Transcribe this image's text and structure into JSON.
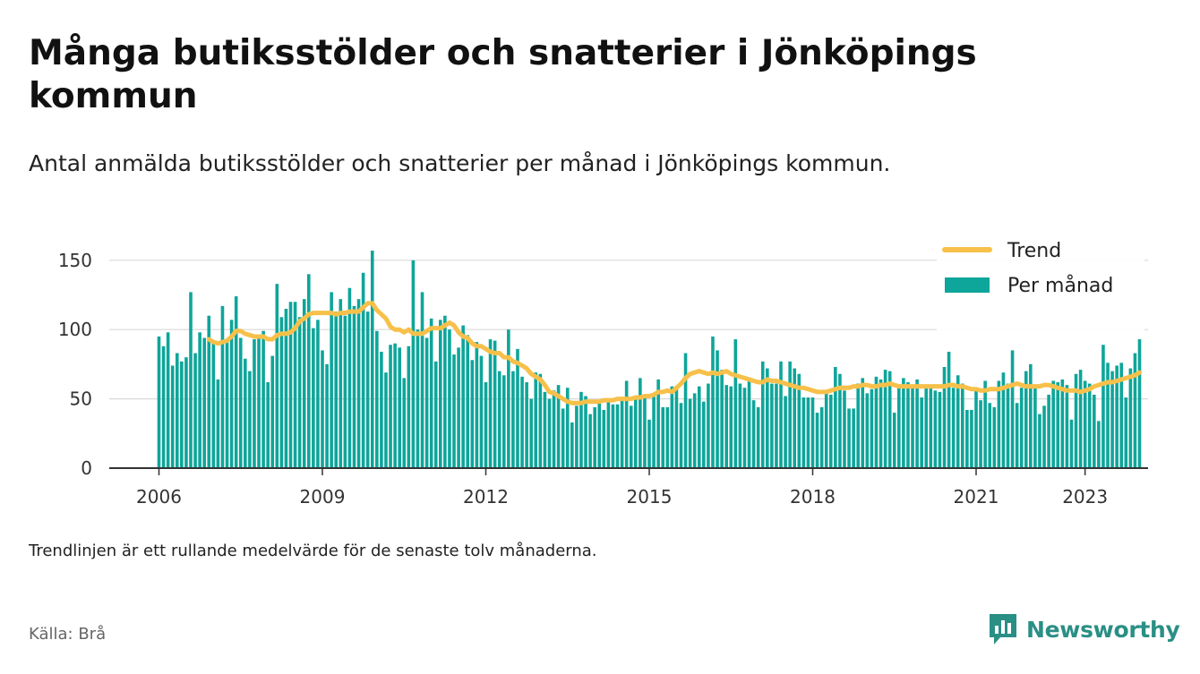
{
  "title": "Många butiksstölder och snatterier i Jönköpings kommun",
  "subtitle": "Antal anmälda butiksstölder och snatterier per månad i Jönköpings kommun.",
  "note": "Trendlinjen är ett rullande medelvärde för de senaste tolv månaderna.",
  "source": "Källa: Brå",
  "brand": "Newsworthy",
  "colors": {
    "bars": "#0ea59a",
    "trend": "#f7c04a",
    "brand": "#2a8f85"
  },
  "chart_data": {
    "type": "bar",
    "title": "",
    "xlabel": "",
    "ylabel": "",
    "ylim": [
      0,
      170
    ],
    "yticks": [
      0,
      50,
      100,
      150
    ],
    "xticks": [
      "2006",
      "2009",
      "2012",
      "2015",
      "2018",
      "2021",
      "2023"
    ],
    "x_start": "2006-01",
    "x_end": "2023-04",
    "grid": "horizontal",
    "legend_position": "top-right",
    "series": [
      {
        "name": "Per månad",
        "type": "bar",
        "values": [
          95,
          88,
          98,
          74,
          83,
          77,
          80,
          127,
          83,
          98,
          94,
          110,
          90,
          64,
          117,
          92,
          107,
          124,
          94,
          79,
          70,
          93,
          95,
          99,
          62,
          81,
          133,
          109,
          115,
          120,
          120,
          109,
          122,
          140,
          101,
          107,
          85,
          75,
          127,
          113,
          122,
          110,
          130,
          117,
          122,
          141,
          113,
          157,
          99,
          84,
          69,
          89,
          90,
          87,
          65,
          88,
          150,
          100,
          127,
          94,
          108,
          77,
          107,
          110,
          100,
          82,
          87,
          103,
          96,
          78,
          91,
          81,
          62,
          93,
          92,
          70,
          67,
          100,
          70,
          86,
          66,
          62,
          50,
          69,
          68,
          55,
          50,
          56,
          60,
          43,
          58,
          33,
          45,
          55,
          52,
          39,
          44,
          47,
          42,
          48,
          46,
          46,
          51,
          63,
          45,
          50,
          65,
          53,
          35,
          52,
          64,
          44,
          44,
          59,
          59,
          47,
          83,
          50,
          54,
          59,
          48,
          61,
          95,
          85,
          71,
          60,
          59,
          93,
          61,
          58,
          63,
          49,
          44,
          77,
          72,
          61,
          61,
          77,
          52,
          77,
          72,
          68,
          51,
          51,
          51,
          40,
          44,
          56,
          53,
          73,
          68,
          56,
          43,
          43,
          61,
          65,
          54,
          57,
          66,
          64,
          71,
          70,
          40,
          59,
          65,
          62,
          58,
          64,
          51,
          60,
          58,
          56,
          55,
          73,
          84,
          58,
          67,
          61,
          42,
          42,
          56,
          49,
          63,
          47,
          44,
          63,
          69,
          61,
          85,
          47,
          58,
          70,
          75,
          60,
          39,
          45,
          53,
          63,
          62,
          64,
          60,
          35,
          68,
          71,
          63,
          61,
          53,
          34,
          89,
          76,
          70,
          74,
          76,
          51,
          72,
          83,
          93
        ]
      },
      {
        "name": "Trend",
        "type": "line",
        "values": [
          null,
          null,
          null,
          null,
          null,
          null,
          null,
          null,
          null,
          null,
          null,
          93,
          91,
          90,
          91,
          92,
          95,
          99,
          99,
          97,
          96,
          95,
          95,
          95,
          93,
          93,
          96,
          97,
          97,
          98,
          101,
          106,
          108,
          111,
          112,
          112,
          112,
          112,
          112,
          111,
          112,
          112,
          113,
          113,
          113,
          116,
          119,
          119,
          114,
          111,
          108,
          102,
          100,
          100,
          98,
          100,
          97,
          97,
          97,
          99,
          101,
          101,
          101,
          103,
          105,
          103,
          98,
          95,
          94,
          90,
          88,
          88,
          86,
          84,
          83,
          83,
          80,
          80,
          77,
          76,
          74,
          72,
          68,
          66,
          64,
          60,
          55,
          54,
          52,
          50,
          48,
          47,
          47,
          47,
          48,
          48,
          48,
          48,
          49,
          49,
          49,
          50,
          50,
          50,
          50,
          51,
          51,
          52,
          52,
          53,
          55,
          55,
          56,
          55,
          58,
          61,
          65,
          68,
          69,
          70,
          69,
          68,
          69,
          68,
          69,
          70,
          68,
          67,
          66,
          65,
          64,
          63,
          62,
          62,
          64,
          63,
          63,
          62,
          61,
          60,
          59,
          58,
          58,
          57,
          56,
          55,
          55,
          55,
          56,
          57,
          58,
          58,
          58,
          59,
          59,
          60,
          60,
          59,
          59,
          60,
          60,
          61,
          60,
          59,
          59,
          59,
          59,
          59,
          59,
          59,
          59,
          59,
          59,
          59,
          60,
          60,
          59,
          59,
          58,
          57,
          57,
          56,
          56,
          57,
          57,
          57,
          58,
          59,
          60,
          61,
          60,
          59,
          59,
          59,
          59,
          60,
          60,
          59,
          58,
          57,
          56,
          56,
          56,
          55,
          56,
          57,
          59,
          60,
          61,
          62,
          62,
          63,
          64,
          65,
          66,
          67,
          69
        ]
      }
    ]
  }
}
